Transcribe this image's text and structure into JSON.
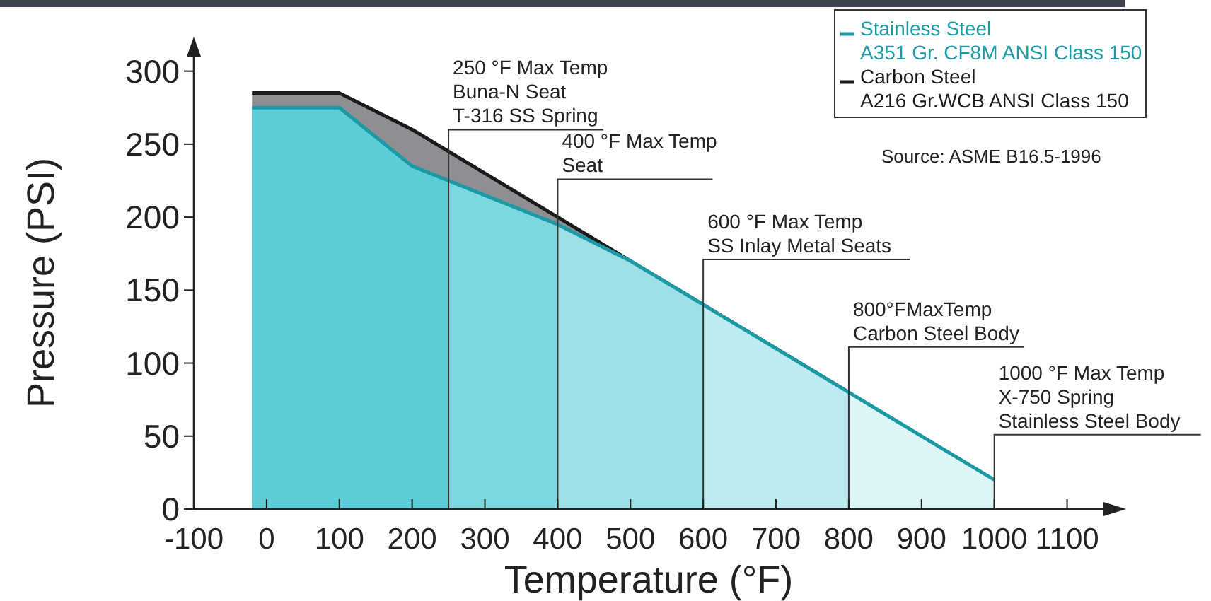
{
  "chart_data": {
    "type": "area",
    "xlabel": "Temperature (°F)",
    "ylabel": "Pressure (PSI)",
    "x": [
      -20,
      100,
      200,
      300,
      400,
      500,
      600,
      700,
      800,
      900,
      1000
    ],
    "series": [
      {
        "name": "Carbon Steel\nA216 Gr.WCB ANSI Class 150",
        "color": "#1a1a1a",
        "values": [
          285,
          285,
          260,
          230,
          200,
          170,
          140,
          110,
          80,
          null,
          null
        ]
      },
      {
        "name": "Stainless Steel\nA351 Gr. CF8M ANSI Class 150",
        "color": "#1b9aa6",
        "values": [
          275,
          275,
          235,
          215,
          195,
          170,
          140,
          110,
          80,
          50,
          20
        ]
      }
    ],
    "xlim": [
      -100,
      1150
    ],
    "xticks": [
      -100,
      0,
      100,
      200,
      300,
      400,
      500,
      600,
      700,
      800,
      900,
      1000,
      1100
    ],
    "ylim": [
      0,
      310
    ],
    "yticks": [
      0,
      50,
      100,
      150,
      200,
      250,
      300
    ],
    "ref_lines": [
      {
        "axis": "x",
        "value": 250,
        "label": "250 °F Max Temp\nBuna-N Seat\nT-316 SS Spring"
      },
      {
        "axis": "x",
        "value": 400,
        "label": "400 °F Max Temp\nSeat"
      },
      {
        "axis": "x",
        "value": 600,
        "label": "600 °F Max Temp\nSS Inlay Metal Seats"
      },
      {
        "axis": "x",
        "value": 800,
        "label": "800°FMaxTemp\nCarbon Steel Body"
      },
      {
        "axis": "x",
        "value": 1000,
        "label": "1000 °F Max Temp\nX-750 Spring\nStainless Steel Body"
      }
    ],
    "annotations": [
      "Source: ASME B16.5-1996"
    ],
    "legend": "top right",
    "grid": false
  }
}
